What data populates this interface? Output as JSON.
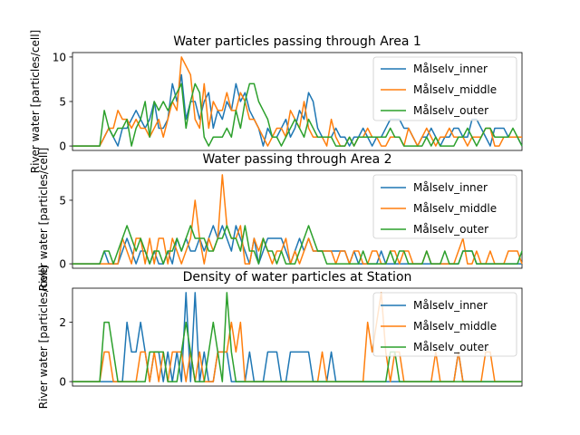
{
  "figure": {
    "background": "#ffffff",
    "series_colors": {
      "Målselv_inner": "#1f77b4",
      "Målselv_middle": "#ff7f0e",
      "Målselv_outer": "#2ca02c"
    }
  },
  "chart_data": [
    {
      "type": "line",
      "title": "Water particles passing through Area 1",
      "xlabel": "",
      "ylabel": "River water [particles/cell]",
      "ylim": [
        -0.5,
        10.5
      ],
      "yticks": [
        0,
        5,
        10
      ],
      "xlim": [
        0,
        99
      ],
      "xticks_shown": false,
      "legend": "top-right",
      "series": [
        {
          "name": "Målselv_inner",
          "color": "#1f77b4",
          "values": [
            0,
            0,
            0,
            0,
            0,
            0,
            0,
            1,
            2,
            1,
            0,
            2,
            2,
            3,
            4,
            3,
            2,
            3,
            5,
            2,
            2,
            3,
            7,
            5,
            8,
            3,
            5,
            5,
            3,
            5,
            6,
            2,
            4,
            3,
            5,
            4,
            7,
            5,
            6,
            4,
            3,
            2,
            0,
            2,
            1,
            1,
            2,
            3,
            1,
            2,
            4,
            3,
            6,
            5,
            2,
            1,
            1,
            1,
            2,
            1,
            1,
            0,
            1,
            1,
            2,
            1,
            0,
            1,
            1,
            2,
            3,
            3,
            3,
            2,
            2,
            1,
            0,
            1,
            1,
            2,
            1,
            0,
            1,
            1,
            2,
            2,
            1,
            1,
            3,
            3,
            2,
            1,
            0,
            2,
            2,
            2,
            1,
            1,
            1,
            0
          ]
        },
        {
          "name": "Målselv_middle",
          "color": "#ff7f0e",
          "values": [
            0,
            0,
            0,
            0,
            0,
            0,
            0,
            1,
            2,
            2,
            4,
            3,
            3,
            2,
            3,
            2,
            2,
            1,
            2,
            3,
            1,
            3,
            5,
            4,
            10,
            9,
            8,
            3,
            2,
            7,
            2,
            5,
            4,
            4,
            6,
            4,
            4,
            6,
            5,
            3,
            3,
            2,
            1,
            0,
            1,
            2,
            2,
            1,
            4,
            3,
            2,
            5,
            2,
            1,
            1,
            1,
            0,
            3,
            1,
            0,
            0,
            1,
            0,
            1,
            1,
            2,
            1,
            1,
            0,
            0,
            1,
            1,
            1,
            0,
            2,
            1,
            0,
            1,
            2,
            1,
            0,
            1,
            1,
            2,
            1,
            1,
            1,
            0,
            1,
            1,
            1,
            2,
            2,
            0,
            0,
            1,
            1,
            1,
            1,
            1
          ]
        },
        {
          "name": "Målselv_outer",
          "color": "#2ca02c",
          "values": [
            0,
            0,
            0,
            0,
            0,
            0,
            0,
            4,
            2,
            1,
            2,
            2,
            3,
            0,
            2,
            3,
            5,
            1,
            5,
            4,
            5,
            4,
            5,
            6,
            7,
            2,
            5,
            7,
            6,
            1,
            0,
            1,
            1,
            1,
            2,
            1,
            4,
            2,
            5,
            7,
            7,
            5,
            4,
            3,
            1,
            1,
            0,
            1,
            2,
            3,
            2,
            1,
            3,
            2,
            1,
            1,
            1,
            1,
            0,
            0,
            0,
            1,
            0,
            1,
            1,
            1,
            1,
            1,
            1,
            1,
            2,
            1,
            1,
            0,
            0,
            0,
            0,
            0,
            1,
            0,
            1,
            0,
            0,
            0,
            0,
            1,
            1,
            2,
            1,
            0,
            1,
            2,
            2,
            1,
            1,
            1,
            1,
            2,
            1,
            0
          ]
        }
      ]
    },
    {
      "type": "line",
      "title": "Water passing through Area 2",
      "xlabel": "",
      "ylabel": "River water [particles/cell]",
      "ylim": [
        -0.35,
        7.35
      ],
      "yticks": [
        0,
        5
      ],
      "xlim": [
        0,
        99
      ],
      "xticks_shown": false,
      "legend": "top-right",
      "series": [
        {
          "name": "Målselv_inner",
          "color": "#1f77b4",
          "values": [
            0,
            0,
            0,
            0,
            0,
            0,
            0,
            1,
            0,
            0,
            0,
            1,
            2,
            1,
            0,
            1,
            1,
            0,
            1,
            0,
            0,
            1,
            0,
            2,
            1,
            2,
            1,
            1,
            2,
            1,
            2,
            3,
            2,
            3,
            2,
            1,
            3,
            2,
            1,
            0,
            2,
            0,
            1,
            2,
            2,
            2,
            2,
            1,
            0,
            1,
            2,
            1,
            2,
            1,
            1,
            1,
            1,
            1,
            1,
            1,
            1,
            0,
            1,
            0,
            0,
            0,
            0,
            0,
            1,
            0,
            0,
            0,
            0,
            0,
            0,
            0,
            0,
            0,
            0,
            0,
            0,
            0,
            0,
            0,
            0,
            0,
            1,
            1,
            1,
            0,
            0,
            0,
            0,
            0,
            0,
            0,
            0,
            0,
            0,
            0
          ]
        },
        {
          "name": "Målselv_middle",
          "color": "#ff7f0e",
          "values": [
            0,
            0,
            0,
            0,
            0,
            0,
            0,
            0,
            0,
            0,
            0,
            2,
            1,
            0,
            2,
            2,
            0,
            2,
            0,
            2,
            2,
            0,
            2,
            1,
            0,
            1,
            2,
            5,
            2,
            0,
            2,
            1,
            2,
            7,
            3,
            2,
            2,
            3,
            0,
            0,
            2,
            1,
            2,
            1,
            0,
            1,
            1,
            2,
            0,
            1,
            0,
            1,
            2,
            1,
            1,
            1,
            1,
            1,
            0,
            1,
            1,
            0,
            1,
            1,
            0,
            0,
            1,
            1,
            0,
            0,
            1,
            1,
            0,
            1,
            1,
            0,
            0,
            0,
            1,
            0,
            0,
            0,
            0,
            0,
            0,
            1,
            2,
            0,
            0,
            1,
            0,
            0,
            1,
            0,
            0,
            0,
            1,
            1,
            1,
            0
          ]
        },
        {
          "name": "Målselv_outer",
          "color": "#2ca02c",
          "values": [
            0,
            0,
            0,
            0,
            0,
            0,
            0,
            1,
            1,
            0,
            1,
            2,
            3,
            2,
            1,
            2,
            1,
            0,
            1,
            1,
            0,
            1,
            1,
            2,
            1,
            2,
            3,
            2,
            2,
            2,
            1,
            1,
            2,
            2,
            3,
            2,
            2,
            1,
            3,
            1,
            1,
            0,
            2,
            1,
            1,
            0,
            1,
            0,
            0,
            0,
            1,
            2,
            3,
            2,
            1,
            1,
            0,
            0,
            0,
            0,
            0,
            0,
            0,
            0,
            1,
            0,
            0,
            0,
            0,
            0,
            1,
            0,
            1,
            1,
            0,
            0,
            0,
            0,
            1,
            0,
            0,
            0,
            1,
            0,
            0,
            0,
            1,
            1,
            1,
            0,
            0,
            0,
            0,
            0,
            0,
            0,
            0,
            0,
            0,
            1
          ]
        }
      ]
    },
    {
      "type": "line",
      "title": "Density of water particles at Station",
      "xlabel": "",
      "ylabel": "River water [particles/cell]",
      "ylim": [
        -0.15,
        3.15
      ],
      "yticks": [
        0,
        2
      ],
      "xlim": [
        0,
        99
      ],
      "xticks_shown": false,
      "legend": "top-right",
      "series": [
        {
          "name": "Målselv_inner",
          "color": "#1f77b4",
          "values": [
            0,
            0,
            0,
            0,
            0,
            0,
            0,
            0,
            0,
            0,
            0,
            0,
            2,
            1,
            1,
            2,
            1,
            0,
            1,
            1,
            0,
            1,
            0,
            1,
            0,
            3,
            0,
            3,
            0,
            1,
            0,
            0,
            1,
            1,
            1,
            0,
            0,
            0,
            0,
            1,
            0,
            0,
            0,
            1,
            1,
            1,
            0,
            0,
            1,
            1,
            1,
            1,
            1,
            0,
            0,
            0,
            0,
            1,
            0,
            0,
            0,
            0,
            0,
            0,
            0,
            0,
            0,
            0,
            0,
            0,
            0,
            0,
            0,
            0,
            0,
            0,
            0,
            0,
            0,
            0,
            0,
            0,
            0,
            0,
            0,
            1,
            0,
            0,
            0,
            0,
            0,
            0,
            0,
            0,
            0,
            0,
            0,
            0,
            0,
            0
          ]
        },
        {
          "name": "Målselv_middle",
          "color": "#ff7f0e",
          "values": [
            0,
            0,
            0,
            0,
            0,
            0,
            0,
            1,
            1,
            0,
            0,
            0,
            0,
            0,
            0,
            1,
            1,
            0,
            1,
            0,
            1,
            0,
            1,
            1,
            1,
            0,
            1,
            0,
            1,
            0,
            0,
            0,
            1,
            1,
            1,
            2,
            1,
            2,
            0,
            0,
            0,
            0,
            0,
            0,
            0,
            0,
            0,
            0,
            0,
            0,
            0,
            0,
            0,
            0,
            0,
            1,
            0,
            0,
            0,
            0,
            0,
            0,
            0,
            0,
            0,
            2,
            1,
            2,
            3,
            1,
            0,
            1,
            1,
            0,
            0,
            0,
            0,
            0,
            0,
            0,
            1,
            0,
            0,
            0,
            0,
            1,
            0,
            0,
            0,
            0,
            0,
            1,
            1,
            0,
            0,
            0,
            0,
            0,
            0,
            0
          ]
        },
        {
          "name": "Målselv_outer",
          "color": "#2ca02c",
          "values": [
            0,
            0,
            0,
            0,
            0,
            0,
            0,
            2,
            2,
            1,
            0,
            0,
            0,
            0,
            0,
            0,
            0,
            1,
            1,
            1,
            1,
            0,
            0,
            0,
            1,
            2,
            1,
            0,
            0,
            0,
            1,
            2,
            1,
            0,
            3,
            1,
            0,
            0,
            0,
            0,
            0,
            0,
            0,
            0,
            0,
            0,
            0,
            0,
            0,
            0,
            0,
            0,
            0,
            0,
            0,
            0,
            0,
            0,
            0,
            0,
            0,
            0,
            0,
            0,
            0,
            0,
            0,
            0,
            0,
            0,
            1,
            1,
            0,
            0,
            0,
            0,
            0,
            0,
            0,
            0,
            0,
            0,
            0,
            0,
            0,
            0,
            0,
            0,
            0,
            0,
            0,
            0,
            0,
            0,
            0,
            0,
            0,
            0,
            0,
            0
          ]
        }
      ]
    }
  ]
}
